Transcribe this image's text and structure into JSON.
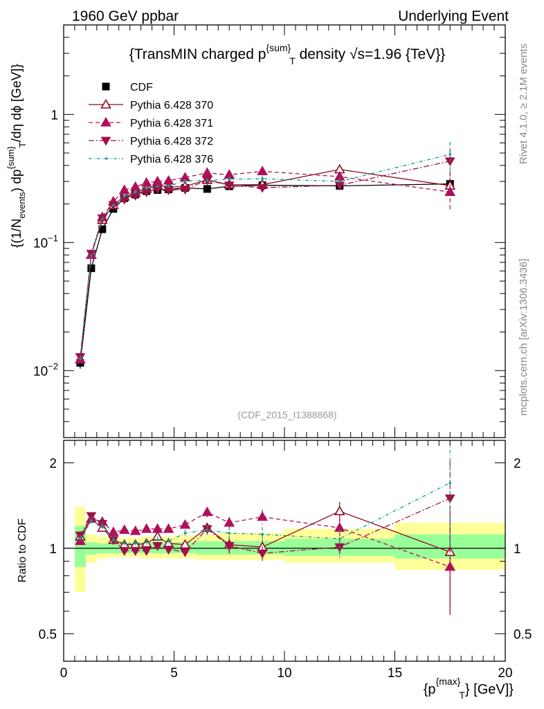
{
  "header": {
    "left": "1960 GeV ppbar",
    "right": "Underlying Event"
  },
  "side": {
    "rivet": "Rivet 4.1.0, ≥ 2.1M events",
    "mcplots": "mcplots.cern.ch [arXiv:1306.3436]"
  },
  "analysis_id": "(CDF_2015_I1388868)",
  "colors": {
    "cdf": "#000000",
    "p370": "#8b0a1e",
    "p371": "#b0105a",
    "p372": "#a0104a",
    "p376": "#119c8c",
    "band_outer": "#ffff99",
    "band_inner": "#99ff99"
  },
  "chart_data": [
    {
      "type": "scatter",
      "title": "{TransMIN charged p^{sum}_T density √s=1.96 {TeV}}",
      "title_parts": {
        "a": "{TransMIN charged p",
        "sup": "{sum}",
        "sub": "T",
        "b": " density ",
        "sqrt": "√",
        "c": "s=1.96 {TeV}}"
      },
      "ylabel_parts": {
        "a": "{(1/N",
        "sub1": "events",
        "b": ") dp",
        "sup": "{sum}",
        "sub2": "T",
        "c": "/dη dϕ [GeV]}"
      },
      "yscale": "log",
      "ylim": [
        0.003,
        5
      ],
      "xlim": [
        0,
        20
      ],
      "yticks": [
        {
          "v": 0.01,
          "base": "10",
          "exp": "−2"
        },
        {
          "v": 0.1,
          "base": "10",
          "exp": "−1"
        },
        {
          "v": 1,
          "label": "1"
        }
      ],
      "legend_position": "top-left",
      "series": [
        {
          "name": "CDF",
          "style": "cdf",
          "x": [
            0.75,
            1.25,
            1.75,
            2.25,
            2.75,
            3.25,
            3.75,
            4.25,
            4.75,
            5.5,
            6.5,
            7.5,
            9.0,
            12.5,
            17.5
          ],
          "y": [
            0.0115,
            0.063,
            0.127,
            0.183,
            0.222,
            0.237,
            0.252,
            0.257,
            0.26,
            0.267,
            0.262,
            0.275,
            0.28,
            0.277,
            0.287
          ],
          "err": [
            0.1,
            0.07,
            0.06,
            0.05,
            0.05,
            0.05,
            0.05,
            0.05,
            0.05,
            0.05,
            0.05,
            0.05,
            0.06,
            0.06,
            0.1
          ]
        },
        {
          "name": "Pythia 6.428 370",
          "style": "p370",
          "x": [
            0.75,
            1.25,
            1.75,
            2.25,
            2.75,
            3.25,
            3.75,
            4.25,
            4.75,
            5.5,
            6.5,
            7.5,
            9.0,
            12.5,
            17.5
          ],
          "y": [
            0.0122,
            0.08,
            0.15,
            0.196,
            0.228,
            0.245,
            0.262,
            0.282,
            0.27,
            0.275,
            0.308,
            0.283,
            0.283,
            0.372,
            0.278
          ],
          "err": [
            0.03,
            0.02,
            0.02,
            0.02,
            0.02,
            0.02,
            0.02,
            0.02,
            0.03,
            0.03,
            0.04,
            0.06,
            0.06,
            0.08,
            0.12
          ]
        },
        {
          "name": "Pythia 6.428 371",
          "style": "p371",
          "x": [
            0.75,
            1.25,
            1.75,
            2.25,
            2.75,
            3.25,
            3.75,
            4.25,
            4.75,
            5.5,
            6.5,
            7.5,
            9.0,
            12.5,
            17.5
          ],
          "y": [
            0.0122,
            0.08,
            0.158,
            0.209,
            0.257,
            0.272,
            0.293,
            0.3,
            0.304,
            0.322,
            0.35,
            0.338,
            0.36,
            0.327,
            0.248
          ],
          "err": [
            0.03,
            0.02,
            0.02,
            0.02,
            0.02,
            0.02,
            0.02,
            0.02,
            0.03,
            0.03,
            0.04,
            0.05,
            0.06,
            0.08,
            0.3
          ]
        },
        {
          "name": "Pythia 6.428 372",
          "style": "p372",
          "x": [
            0.75,
            1.25,
            1.75,
            2.25,
            2.75,
            3.25,
            3.75,
            4.25,
            4.75,
            5.5,
            6.5,
            7.5,
            9.0,
            12.5,
            17.5
          ],
          "y": [
            0.0128,
            0.082,
            0.155,
            0.197,
            0.217,
            0.233,
            0.248,
            0.262,
            0.257,
            0.26,
            0.307,
            0.28,
            0.268,
            0.28,
            0.432
          ],
          "err": [
            0.03,
            0.02,
            0.02,
            0.02,
            0.02,
            0.02,
            0.02,
            0.02,
            0.03,
            0.03,
            0.04,
            0.06,
            0.06,
            0.08,
            0.25
          ]
        },
        {
          "name": "Pythia 6.428 376",
          "style": "p376",
          "x": [
            0.75,
            1.25,
            1.75,
            2.25,
            2.75,
            3.25,
            3.75,
            4.25,
            4.75,
            5.5,
            6.5,
            7.5,
            9.0,
            12.5,
            17.5
          ],
          "y": [
            0.0124,
            0.079,
            0.153,
            0.196,
            0.23,
            0.247,
            0.265,
            0.275,
            0.275,
            0.303,
            0.305,
            0.312,
            0.315,
            0.3,
            0.488
          ],
          "err": [
            0.03,
            0.02,
            0.02,
            0.02,
            0.02,
            0.02,
            0.02,
            0.02,
            0.03,
            0.03,
            0.04,
            0.05,
            0.06,
            0.08,
            0.25
          ]
        }
      ]
    },
    {
      "type": "scatter",
      "title": "",
      "ylabel": "Ratio to CDF",
      "xlabel": "{p^{max}_T} [GeV]}",
      "xlabel_parts": {
        "a": "{p",
        "sup": "{max}",
        "sub": "T",
        "b": "} [GeV]}"
      },
      "yscale": "log",
      "ylim": [
        0.4,
        2.4
      ],
      "xlim": [
        0,
        20
      ],
      "xticks": [
        0,
        5,
        10,
        15,
        20
      ],
      "yticks": [
        {
          "v": 0.5,
          "label": "0.5"
        },
        {
          "v": 1,
          "label": "1"
        },
        {
          "v": 2,
          "label": "2"
        }
      ],
      "bands": {
        "edges": [
          0.5,
          1.0,
          1.5,
          2.0,
          2.5,
          3.0,
          3.5,
          4.0,
          4.5,
          5.0,
          6.0,
          7.0,
          8.0,
          10.0,
          15.0,
          20.0
        ],
        "outer": [
          [
            0.7,
            1.4
          ],
          [
            0.89,
            1.12
          ],
          [
            0.92,
            1.1
          ],
          [
            0.93,
            1.09
          ],
          [
            0.93,
            1.09
          ],
          [
            0.93,
            1.09
          ],
          [
            0.92,
            1.1
          ],
          [
            0.92,
            1.1
          ],
          [
            0.92,
            1.1
          ],
          [
            0.92,
            1.11
          ],
          [
            0.91,
            1.12
          ],
          [
            0.91,
            1.13
          ],
          [
            0.91,
            1.13
          ],
          [
            0.89,
            1.17
          ],
          [
            0.84,
            1.23
          ]
        ],
        "inner": [
          [
            0.86,
            1.2
          ],
          [
            0.95,
            1.05
          ],
          [
            0.96,
            1.04
          ],
          [
            0.96,
            1.04
          ],
          [
            0.96,
            1.04
          ],
          [
            0.96,
            1.04
          ],
          [
            0.96,
            1.05
          ],
          [
            0.96,
            1.05
          ],
          [
            0.96,
            1.05
          ],
          [
            0.96,
            1.05
          ],
          [
            0.95,
            1.06
          ],
          [
            0.95,
            1.06
          ],
          [
            0.95,
            1.06
          ],
          [
            0.94,
            1.08
          ],
          [
            0.92,
            1.12
          ]
        ]
      },
      "series": [
        {
          "name": "Pythia 6.428 370",
          "style": "p370",
          "x": [
            0.75,
            1.25,
            1.75,
            2.25,
            2.75,
            3.25,
            3.75,
            4.25,
            4.75,
            5.5,
            6.5,
            7.5,
            9.0,
            12.5,
            17.5
          ],
          "y": [
            1.1,
            1.27,
            1.18,
            1.07,
            1.03,
            1.03,
            1.04,
            1.1,
            1.04,
            1.03,
            1.18,
            1.03,
            1.01,
            1.35,
            0.97
          ],
          "err": [
            0.03,
            0.03,
            0.03,
            0.03,
            0.03,
            0.03,
            0.03,
            0.03,
            0.03,
            0.03,
            0.04,
            0.06,
            0.06,
            0.08,
            0.4
          ]
        },
        {
          "name": "Pythia 6.428 371",
          "style": "p371",
          "x": [
            0.75,
            1.25,
            1.75,
            2.25,
            2.75,
            3.25,
            3.75,
            4.25,
            4.75,
            5.5,
            6.5,
            7.5,
            9.0,
            12.5,
            17.5
          ],
          "y": [
            1.06,
            1.27,
            1.24,
            1.14,
            1.16,
            1.15,
            1.17,
            1.17,
            1.17,
            1.21,
            1.34,
            1.23,
            1.29,
            1.18,
            0.86
          ],
          "err": [
            0.03,
            0.03,
            0.03,
            0.03,
            0.03,
            0.03,
            0.03,
            0.03,
            0.03,
            0.03,
            0.04,
            0.05,
            0.06,
            0.08,
            0.3
          ]
        },
        {
          "name": "Pythia 6.428 372",
          "style": "p372",
          "x": [
            0.75,
            1.25,
            1.75,
            2.25,
            2.75,
            3.25,
            3.75,
            4.25,
            4.75,
            5.5,
            6.5,
            7.5,
            9.0,
            12.5,
            17.5
          ],
          "y": [
            1.11,
            1.3,
            1.22,
            1.07,
            0.98,
            0.98,
            0.98,
            1.02,
            0.99,
            0.97,
            1.17,
            1.02,
            0.96,
            1.01,
            1.5
          ],
          "err": [
            0.03,
            0.03,
            0.03,
            0.03,
            0.03,
            0.03,
            0.03,
            0.03,
            0.03,
            0.03,
            0.04,
            0.06,
            0.06,
            0.08,
            0.35
          ]
        },
        {
          "name": "Pythia 6.428 376",
          "style": "p376",
          "x": [
            0.75,
            1.25,
            1.75,
            2.25,
            2.75,
            3.25,
            3.75,
            4.25,
            4.75,
            5.5,
            6.5,
            7.5,
            9.0,
            12.5,
            17.5
          ],
          "y": [
            1.08,
            1.25,
            1.2,
            1.07,
            1.04,
            1.04,
            1.05,
            1.07,
            1.06,
            1.13,
            1.16,
            1.13,
            1.12,
            1.08,
            1.7
          ],
          "err": [
            0.03,
            0.03,
            0.03,
            0.03,
            0.03,
            0.03,
            0.03,
            0.03,
            0.03,
            0.03,
            0.04,
            0.05,
            0.06,
            0.08,
            0.4
          ]
        }
      ]
    }
  ]
}
